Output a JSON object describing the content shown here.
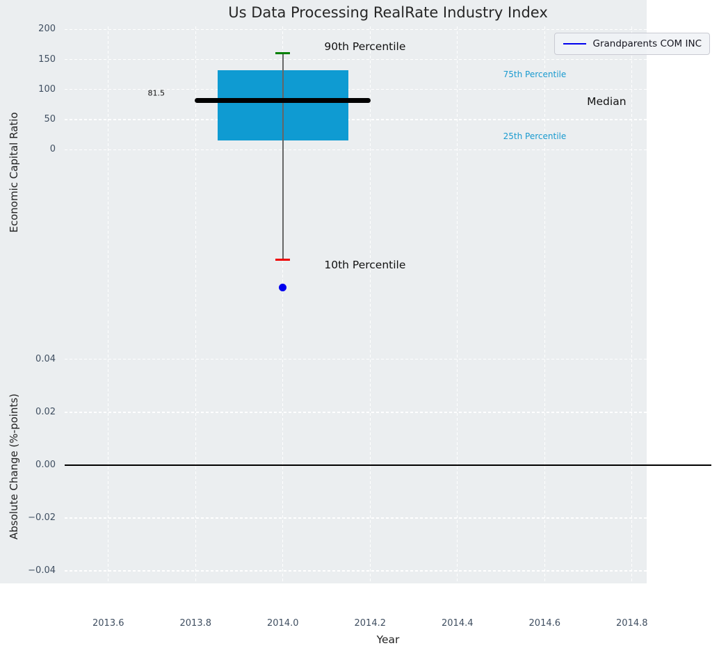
{
  "colors": {
    "plot_bg": "#ebeef0",
    "grid": "#ffffff",
    "tick_label": "#3f4e60",
    "text": "#222222",
    "box": "#0f9bd2",
    "p90_cap": "#008000",
    "p10_cap": "#ee0000",
    "whisker": "#666666",
    "median": "#000000",
    "company": "#0000ee",
    "percentile_text": "#199acf",
    "zero_line": "#000000"
  },
  "chart_data": [
    {
      "type": "boxplot",
      "title": "Us Data Processing RealRate Industry Index",
      "ylabel": "Economic Capital Ratio",
      "xlim": [
        2013.5,
        2014.982
      ],
      "ylim": [
        -281,
        205
      ],
      "grid": "white-dashed",
      "show_xtick_labels": false,
      "xticks": [
        {
          "v": 2013.6,
          "label": "2013.6"
        },
        {
          "v": 2013.8,
          "label": "2013.8"
        },
        {
          "v": 2014.0,
          "label": "2014.0"
        },
        {
          "v": 2014.2,
          "label": "2014.2"
        },
        {
          "v": 2014.4,
          "label": "2014.4"
        },
        {
          "v": 2014.6,
          "label": "2014.6"
        },
        {
          "v": 2014.8,
          "label": "2014.8"
        }
      ],
      "yticks": [
        {
          "v": 200,
          "label": "200"
        },
        {
          "v": 150,
          "label": "150"
        },
        {
          "v": 100,
          "label": "100"
        },
        {
          "v": 50,
          "label": "50"
        },
        {
          "v": 0,
          "label": "0"
        }
      ],
      "box": {
        "x": 2014.0,
        "q1": 15,
        "q3": 132,
        "median": 81.5,
        "p90": 160,
        "p10": -183,
        "box_half_width": 0.15,
        "median_half_width": 0.2015,
        "cap_half_width": 0.0165
      },
      "point": {
        "x": 2014.0,
        "y": -229,
        "name": "Grandparents COM INC"
      },
      "annotations": [
        {
          "text": "81.5",
          "x": 2013.71,
          "y": 94,
          "color": "#111111",
          "size": 11,
          "anchor": "middle"
        },
        {
          "text": "90th Percentile",
          "x": 2014.095,
          "y": 171,
          "color": "#111111",
          "size": 15.5,
          "anchor": "start"
        },
        {
          "text": "75th Percentile",
          "x": 2014.505,
          "y": 125,
          "color": "#199acf",
          "size": 12,
          "anchor": "start"
        },
        {
          "text": "Median",
          "x": 2014.697,
          "y": 80,
          "color": "#111111",
          "size": 15.5,
          "anchor": "start"
        },
        {
          "text": "25th Percentile",
          "x": 2014.505,
          "y": 22,
          "color": "#199acf",
          "size": 12,
          "anchor": "start"
        },
        {
          "text": "10th Percentile",
          "x": 2014.095,
          "y": -192,
          "color": "#111111",
          "size": 15.5,
          "anchor": "start"
        }
      ],
      "legend": {
        "label": "Grandparents COM INC",
        "loc": "upper right"
      }
    },
    {
      "type": "line",
      "ylabel": "Absolute Change (%-points)",
      "xlabel": "Year",
      "xlim": [
        2013.5,
        2014.982
      ],
      "ylim": [
        -0.0555,
        0.0547
      ],
      "grid": "white-dashed",
      "show_xtick_labels": true,
      "xticks": [
        {
          "v": 2013.6,
          "label": "2013.6"
        },
        {
          "v": 2013.8,
          "label": "2013.8"
        },
        {
          "v": 2014.0,
          "label": "2014.0"
        },
        {
          "v": 2014.2,
          "label": "2014.2"
        },
        {
          "v": 2014.4,
          "label": "2014.4"
        },
        {
          "v": 2014.6,
          "label": "2014.6"
        },
        {
          "v": 2014.8,
          "label": "2014.8"
        }
      ],
      "yticks": [
        {
          "v": 0.04,
          "label": "0.04"
        },
        {
          "v": 0.02,
          "label": "0.02"
        },
        {
          "v": 0,
          "label": "0.00"
        },
        {
          "v": -0.02,
          "label": "−0.02"
        },
        {
          "v": -0.04,
          "label": "−0.04"
        }
      ],
      "zero_line": {
        "y": 0
      }
    }
  ]
}
